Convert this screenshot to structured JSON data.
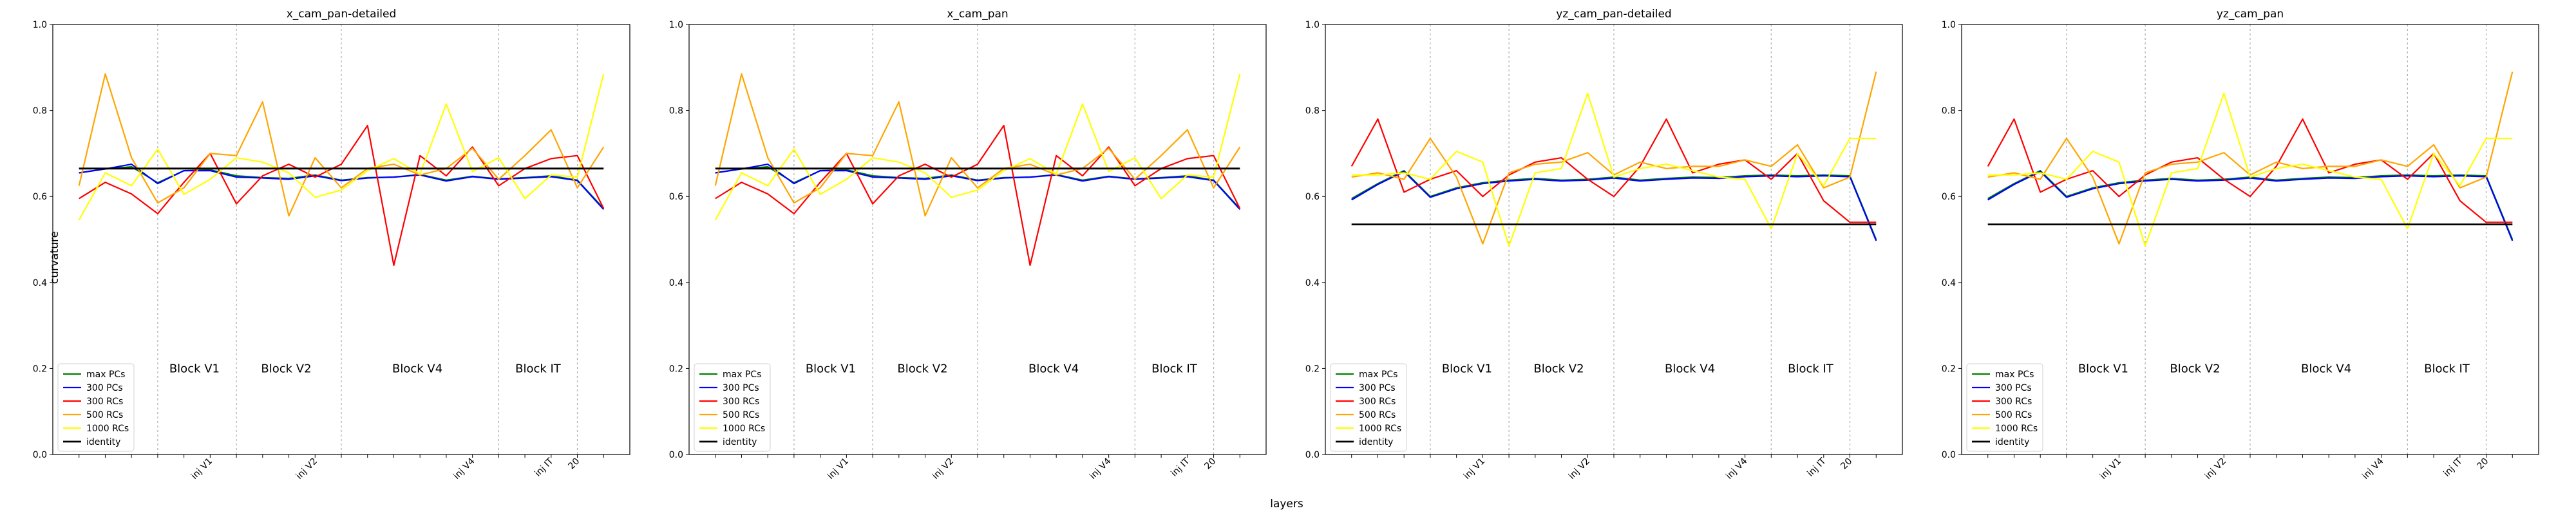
{
  "figure": {
    "xlabel": "layers",
    "ylabel": "curvature"
  },
  "chart_data": [
    {
      "type": "line",
      "title": "x_cam_pan-detailed",
      "ylim": [
        0.0,
        1.0
      ],
      "yticks": [
        "0.0",
        "0.2",
        "0.4",
        "0.6",
        "0.8",
        "1.0"
      ],
      "x": [
        0,
        1,
        2,
        3,
        4,
        5,
        6,
        7,
        8,
        9,
        10,
        11,
        12,
        13,
        14,
        15,
        16,
        17,
        18,
        19,
        20
      ],
      "xlim": [
        -1,
        21
      ],
      "xtick_positions": [
        5,
        9,
        15,
        18,
        19
      ],
      "xtick_labels": [
        "inj V1",
        "inj V2",
        "inj V4",
        "inj IT",
        "20"
      ],
      "vlines": [
        3,
        6,
        10,
        16,
        19
      ],
      "block_labels": [
        {
          "text": "Block V1",
          "x": 4.4
        },
        {
          "text": "Block V2",
          "x": 7.9
        },
        {
          "text": "Block V4",
          "x": 12.9
        },
        {
          "text": "Block IT",
          "x": 17.5
        }
      ],
      "block_label_y": 0.2,
      "series": [
        {
          "name": "max PCs",
          "color": "#008000",
          "width": 2.2,
          "values": [
            0.655,
            0.664,
            0.669,
            0.632,
            0.66,
            0.662,
            0.648,
            0.644,
            0.642,
            0.65,
            0.638,
            0.644,
            0.645,
            0.651,
            0.638,
            0.647,
            0.641,
            0.644,
            0.648,
            0.638,
            0.572
          ]
        },
        {
          "name": "300 PCs",
          "color": "#0000ff",
          "width": 2.2,
          "values": [
            0.655,
            0.664,
            0.675,
            0.63,
            0.66,
            0.66,
            0.645,
            0.643,
            0.64,
            0.648,
            0.637,
            0.643,
            0.645,
            0.65,
            0.636,
            0.646,
            0.64,
            0.643,
            0.646,
            0.637,
            0.57
          ]
        },
        {
          "name": "300 RCs",
          "color": "#ff0000",
          "width": 2.2,
          "values": [
            0.595,
            0.633,
            0.606,
            0.56,
            0.633,
            0.7,
            0.583,
            0.648,
            0.675,
            0.645,
            0.675,
            0.765,
            0.44,
            0.695,
            0.648,
            0.715,
            0.625,
            0.665,
            0.688,
            0.695,
            0.572
          ]
        },
        {
          "name": "500 RCs",
          "color": "#ffa500",
          "width": 2.2,
          "values": [
            0.625,
            0.885,
            0.69,
            0.585,
            0.62,
            0.7,
            0.695,
            0.82,
            0.555,
            0.69,
            0.62,
            0.665,
            0.675,
            0.65,
            0.665,
            0.712,
            0.64,
            0.695,
            0.755,
            0.62,
            0.715
          ]
        },
        {
          "name": "1000 RCs",
          "color": "#ffff00",
          "width": 2.2,
          "values": [
            0.545,
            0.655,
            0.625,
            0.71,
            0.605,
            0.64,
            0.69,
            0.68,
            0.655,
            0.598,
            0.615,
            0.66,
            0.688,
            0.652,
            0.815,
            0.658,
            0.69,
            0.595,
            0.65,
            0.645,
            0.885
          ]
        },
        {
          "name": "identity",
          "color": "#000000",
          "width": 2.8,
          "values": [
            0.665,
            0.665,
            0.665,
            0.665,
            0.665,
            0.665,
            0.665,
            0.665,
            0.665,
            0.665,
            0.665,
            0.665,
            0.665,
            0.665,
            0.665,
            0.665,
            0.665,
            0.665,
            0.665,
            0.665,
            0.665
          ]
        }
      ]
    },
    {
      "type": "line",
      "title": "x_cam_pan",
      "ylim": [
        0.0,
        1.0
      ],
      "yticks": [
        "0.0",
        "0.2",
        "0.4",
        "0.6",
        "0.8",
        "1.0"
      ],
      "x": [
        0,
        1,
        2,
        3,
        4,
        5,
        6,
        7,
        8,
        9,
        10,
        11,
        12,
        13,
        14,
        15,
        16,
        17,
        18,
        19,
        20
      ],
      "xlim": [
        -1,
        21
      ],
      "xtick_positions": [
        5,
        9,
        15,
        18,
        19
      ],
      "xtick_labels": [
        "inj V1",
        "inj V2",
        "inj V4",
        "inj IT",
        "20"
      ],
      "vlines": [
        3,
        6,
        10,
        16,
        19
      ],
      "block_labels": [
        {
          "text": "Block V1",
          "x": 4.4
        },
        {
          "text": "Block V2",
          "x": 7.9
        },
        {
          "text": "Block V4",
          "x": 12.9
        },
        {
          "text": "Block IT",
          "x": 17.5
        }
      ],
      "block_label_y": 0.2,
      "series": [
        {
          "name": "max PCs",
          "color": "#008000",
          "width": 2.2,
          "values": [
            0.655,
            0.664,
            0.669,
            0.632,
            0.66,
            0.662,
            0.648,
            0.644,
            0.642,
            0.65,
            0.638,
            0.644,
            0.645,
            0.651,
            0.638,
            0.647,
            0.641,
            0.644,
            0.648,
            0.638,
            0.572
          ]
        },
        {
          "name": "300 PCs",
          "color": "#0000ff",
          "width": 2.2,
          "values": [
            0.655,
            0.664,
            0.675,
            0.63,
            0.66,
            0.66,
            0.645,
            0.643,
            0.64,
            0.648,
            0.637,
            0.643,
            0.645,
            0.65,
            0.636,
            0.646,
            0.64,
            0.643,
            0.646,
            0.637,
            0.57
          ]
        },
        {
          "name": "300 RCs",
          "color": "#ff0000",
          "width": 2.2,
          "values": [
            0.595,
            0.633,
            0.606,
            0.56,
            0.633,
            0.7,
            0.583,
            0.648,
            0.675,
            0.645,
            0.675,
            0.765,
            0.44,
            0.695,
            0.648,
            0.715,
            0.625,
            0.665,
            0.688,
            0.695,
            0.572
          ]
        },
        {
          "name": "500 RCs",
          "color": "#ffa500",
          "width": 2.2,
          "values": [
            0.625,
            0.885,
            0.69,
            0.585,
            0.62,
            0.7,
            0.695,
            0.82,
            0.555,
            0.69,
            0.62,
            0.665,
            0.675,
            0.65,
            0.665,
            0.712,
            0.64,
            0.695,
            0.755,
            0.62,
            0.715
          ]
        },
        {
          "name": "1000 RCs",
          "color": "#ffff00",
          "width": 2.2,
          "values": [
            0.545,
            0.655,
            0.625,
            0.71,
            0.605,
            0.64,
            0.69,
            0.68,
            0.655,
            0.598,
            0.615,
            0.66,
            0.688,
            0.652,
            0.815,
            0.658,
            0.69,
            0.595,
            0.65,
            0.645,
            0.885
          ]
        },
        {
          "name": "identity",
          "color": "#000000",
          "width": 2.8,
          "values": [
            0.665,
            0.665,
            0.665,
            0.665,
            0.665,
            0.665,
            0.665,
            0.665,
            0.665,
            0.665,
            0.665,
            0.665,
            0.665,
            0.665,
            0.665,
            0.665,
            0.665,
            0.665,
            0.665,
            0.665,
            0.665
          ]
        }
      ]
    },
    {
      "type": "line",
      "title": "yz_cam_pan-detailed",
      "ylim": [
        0.0,
        1.0
      ],
      "yticks": [
        "0.0",
        "0.2",
        "0.4",
        "0.6",
        "0.8",
        "1.0"
      ],
      "x": [
        0,
        1,
        2,
        3,
        4,
        5,
        6,
        7,
        8,
        9,
        10,
        11,
        12,
        13,
        14,
        15,
        16,
        17,
        18,
        19,
        20
      ],
      "xlim": [
        -1,
        21
      ],
      "xtick_positions": [
        5,
        9,
        15,
        18,
        19
      ],
      "xtick_labels": [
        "inj V1",
        "inj V2",
        "inj V4",
        "inj IT",
        "20"
      ],
      "vlines": [
        3,
        6,
        10,
        16,
        19
      ],
      "block_labels": [
        {
          "text": "Block V1",
          "x": 4.4
        },
        {
          "text": "Block V2",
          "x": 7.9
        },
        {
          "text": "Block V4",
          "x": 12.9
        },
        {
          "text": "Block IT",
          "x": 17.5
        }
      ],
      "block_label_y": 0.2,
      "series": [
        {
          "name": "max PCs",
          "color": "#008000",
          "width": 2.2,
          "values": [
            0.595,
            0.63,
            0.66,
            0.6,
            0.62,
            0.632,
            0.638,
            0.642,
            0.638,
            0.64,
            0.645,
            0.638,
            0.642,
            0.645,
            0.644,
            0.648,
            0.65,
            0.648,
            0.65,
            0.648,
            0.5
          ]
        },
        {
          "name": "300 PCs",
          "color": "#0000ff",
          "width": 2.2,
          "values": [
            0.592,
            0.628,
            0.658,
            0.598,
            0.618,
            0.63,
            0.636,
            0.64,
            0.636,
            0.638,
            0.643,
            0.636,
            0.64,
            0.643,
            0.642,
            0.646,
            0.648,
            0.646,
            0.648,
            0.646,
            0.497
          ]
        },
        {
          "name": "300 RCs",
          "color": "#ff0000",
          "width": 2.2,
          "values": [
            0.67,
            0.78,
            0.61,
            0.64,
            0.66,
            0.6,
            0.65,
            0.68,
            0.69,
            0.64,
            0.6,
            0.67,
            0.78,
            0.655,
            0.675,
            0.685,
            0.64,
            0.7,
            0.59,
            0.54,
            0.54
          ]
        },
        {
          "name": "500 RCs",
          "color": "#ffa500",
          "width": 2.2,
          "values": [
            0.645,
            0.655,
            0.64,
            0.735,
            0.645,
            0.49,
            0.655,
            0.675,
            0.68,
            0.702,
            0.65,
            0.68,
            0.665,
            0.67,
            0.67,
            0.685,
            0.67,
            0.72,
            0.62,
            0.645,
            0.89
          ]
        },
        {
          "name": "1000 RCs",
          "color": "#ffff00",
          "width": 2.2,
          "values": [
            0.65,
            0.65,
            0.655,
            0.64,
            0.705,
            0.68,
            0.485,
            0.655,
            0.665,
            0.84,
            0.645,
            0.665,
            0.675,
            0.66,
            0.645,
            0.64,
            0.525,
            0.7,
            0.625,
            0.735,
            0.735
          ]
        },
        {
          "name": "identity",
          "color": "#000000",
          "width": 2.8,
          "values": [
            0.535,
            0.535,
            0.535,
            0.535,
            0.535,
            0.535,
            0.535,
            0.535,
            0.535,
            0.535,
            0.535,
            0.535,
            0.535,
            0.535,
            0.535,
            0.535,
            0.535,
            0.535,
            0.535,
            0.535,
            0.535
          ]
        }
      ]
    },
    {
      "type": "line",
      "title": "yz_cam_pan",
      "ylim": [
        0.0,
        1.0
      ],
      "yticks": [
        "0.0",
        "0.2",
        "0.4",
        "0.6",
        "0.8",
        "1.0"
      ],
      "x": [
        0,
        1,
        2,
        3,
        4,
        5,
        6,
        7,
        8,
        9,
        10,
        11,
        12,
        13,
        14,
        15,
        16,
        17,
        18,
        19,
        20
      ],
      "xlim": [
        -1,
        21
      ],
      "xtick_positions": [
        5,
        9,
        15,
        18,
        19
      ],
      "xtick_labels": [
        "inj V1",
        "inj V2",
        "inj V4",
        "inj IT",
        "20"
      ],
      "vlines": [
        3,
        6,
        10,
        16,
        19
      ],
      "block_labels": [
        {
          "text": "Block V1",
          "x": 4.4
        },
        {
          "text": "Block V2",
          "x": 7.9
        },
        {
          "text": "Block V4",
          "x": 12.9
        },
        {
          "text": "Block IT",
          "x": 17.5
        }
      ],
      "block_label_y": 0.2,
      "series": [
        {
          "name": "max PCs",
          "color": "#008000",
          "width": 2.2,
          "values": [
            0.595,
            0.63,
            0.66,
            0.6,
            0.62,
            0.632,
            0.638,
            0.642,
            0.638,
            0.64,
            0.645,
            0.638,
            0.642,
            0.645,
            0.644,
            0.648,
            0.65,
            0.648,
            0.65,
            0.648,
            0.5
          ]
        },
        {
          "name": "300 PCs",
          "color": "#0000ff",
          "width": 2.2,
          "values": [
            0.592,
            0.628,
            0.658,
            0.598,
            0.618,
            0.63,
            0.636,
            0.64,
            0.636,
            0.638,
            0.643,
            0.636,
            0.64,
            0.643,
            0.642,
            0.646,
            0.648,
            0.646,
            0.648,
            0.646,
            0.497
          ]
        },
        {
          "name": "300 RCs",
          "color": "#ff0000",
          "width": 2.2,
          "values": [
            0.67,
            0.78,
            0.61,
            0.64,
            0.66,
            0.6,
            0.65,
            0.68,
            0.69,
            0.64,
            0.6,
            0.67,
            0.78,
            0.655,
            0.675,
            0.685,
            0.64,
            0.7,
            0.59,
            0.54,
            0.54
          ]
        },
        {
          "name": "500 RCs",
          "color": "#ffa500",
          "width": 2.2,
          "values": [
            0.645,
            0.655,
            0.64,
            0.735,
            0.645,
            0.49,
            0.655,
            0.675,
            0.68,
            0.702,
            0.65,
            0.68,
            0.665,
            0.67,
            0.67,
            0.685,
            0.67,
            0.72,
            0.62,
            0.645,
            0.89
          ]
        },
        {
          "name": "1000 RCs",
          "color": "#ffff00",
          "width": 2.2,
          "values": [
            0.65,
            0.65,
            0.655,
            0.64,
            0.705,
            0.68,
            0.485,
            0.655,
            0.665,
            0.84,
            0.645,
            0.665,
            0.675,
            0.66,
            0.645,
            0.64,
            0.525,
            0.7,
            0.625,
            0.735,
            0.735
          ]
        },
        {
          "name": "identity",
          "color": "#000000",
          "width": 2.8,
          "values": [
            0.535,
            0.535,
            0.535,
            0.535,
            0.535,
            0.535,
            0.535,
            0.535,
            0.535,
            0.535,
            0.535,
            0.535,
            0.535,
            0.535,
            0.535,
            0.535,
            0.535,
            0.535,
            0.535,
            0.535,
            0.535
          ]
        }
      ]
    }
  ]
}
